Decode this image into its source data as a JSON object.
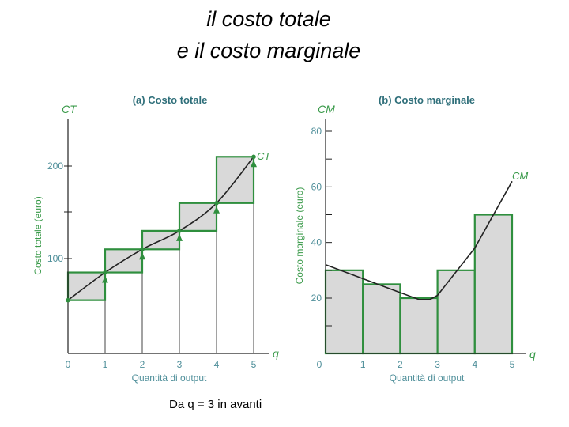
{
  "slide": {
    "title_line1": "il costo totale",
    "title_line2": "e il costo marginale",
    "note": "Da q = 3 in avanti"
  },
  "colors": {
    "green": "#2f8f3e",
    "curve": "#222222",
    "fill": "#d9d9d9",
    "text_green": "#3a9a4a",
    "text_teal": "#2f6f7a"
  },
  "chart_data": [
    {
      "type": "line",
      "title": "(a) Costo totale",
      "y_axis_name": "CT",
      "x_axis_name": "q",
      "ylabel": "Costo totale (euro)",
      "xlabel": "Quantità di output",
      "curve_label": "CT",
      "xlim": [
        0,
        5.5
      ],
      "ylim": [
        0,
        230
      ],
      "x_ticks": [
        "0",
        "1",
        "2",
        "3",
        "4",
        "5"
      ],
      "y_ticks": [
        {
          "value": 100,
          "label": "100"
        },
        {
          "value": 200,
          "label": "200"
        }
      ],
      "points": [
        {
          "q": 0,
          "ct": 55
        },
        {
          "q": 1,
          "ct": 85
        },
        {
          "q": 2,
          "ct": 110
        },
        {
          "q": 3,
          "ct": 130
        },
        {
          "q": 4,
          "ct": 160
        },
        {
          "q": 5,
          "ct": 210
        }
      ],
      "steps": [
        {
          "from_q": 0,
          "to_q": 1,
          "low": 55,
          "high": 85
        },
        {
          "from_q": 1,
          "to_q": 2,
          "low": 85,
          "high": 110
        },
        {
          "from_q": 2,
          "to_q": 3,
          "low": 110,
          "high": 130
        },
        {
          "from_q": 3,
          "to_q": 4,
          "low": 130,
          "high": 160
        },
        {
          "from_q": 4,
          "to_q": 5,
          "low": 160,
          "high": 210
        }
      ]
    },
    {
      "type": "bar",
      "title": "(b) Costo marginale",
      "y_axis_name": "CM",
      "x_axis_name": "q",
      "ylabel": "Costo marginale (euro)",
      "xlabel": "Quantità di output",
      "curve_label": "CM",
      "xlim": [
        0,
        5.5
      ],
      "ylim": [
        0,
        85
      ],
      "x_ticks": [
        "0",
        "1",
        "2",
        "3",
        "4",
        "5"
      ],
      "y_ticks": [
        {
          "value": 20,
          "label": "20"
        },
        {
          "value": 40,
          "label": "40"
        },
        {
          "value": 60,
          "label": "60"
        },
        {
          "value": 80,
          "label": "80"
        }
      ],
      "bars": [
        {
          "from_q": 0,
          "to_q": 1,
          "value": 30
        },
        {
          "from_q": 1,
          "to_q": 2,
          "value": 25
        },
        {
          "from_q": 2,
          "to_q": 3,
          "value": 20
        },
        {
          "from_q": 3,
          "to_q": 4,
          "value": 30
        },
        {
          "from_q": 4,
          "to_q": 5,
          "value": 50
        }
      ],
      "curve": [
        {
          "q": 0,
          "cm": 32
        },
        {
          "q": 1,
          "cm": 27
        },
        {
          "q": 2,
          "cm": 22
        },
        {
          "q": 2.5,
          "cm": 19.5
        },
        {
          "q": 2.8,
          "cm": 19.5
        },
        {
          "q": 3,
          "cm": 21
        },
        {
          "q": 4,
          "cm": 38
        },
        {
          "q": 5,
          "cm": 62
        }
      ]
    }
  ]
}
